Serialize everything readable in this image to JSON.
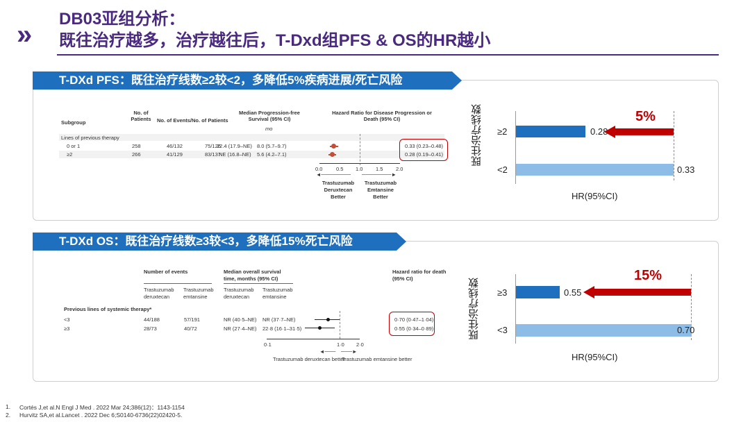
{
  "header": {
    "title_line1": "DB03亚组分析：",
    "title_line2": "既往治疗越多，治疗越往后，T-Dxd组PFS & OS的HR越小",
    "chevron_icon": "double-chevron-right-icon"
  },
  "colors": {
    "brand": "#4a2a80",
    "ribbon": "#1f6fbf",
    "dark_bar": "#1f6fbf",
    "light_bar": "#8dbde6",
    "highlight": "#c00000"
  },
  "pfs": {
    "banner": "T-DXd PFS：既往治疗线数≥2较<2，多降低5%疾病进展/死亡风险",
    "table": {
      "headers": {
        "subgroup": "Subgroup",
        "patients": "No. of Patients",
        "events": "No. of Events/No. of Patients",
        "median": "Median Progression-free Survival (95% CI)",
        "unit": "mo",
        "hr": "Hazard Ratio for Disease Progression or Death (95% CI)"
      },
      "section": "Lines of previous therapy",
      "rows": [
        {
          "label": "0 or 1",
          "patients": "258",
          "ev1": "46/132",
          "ev2": "75/126",
          "m1": "22.4 (17.9–NE)",
          "m2": "8.0 (5.7–9.7)",
          "hr": "0.33 (0.23–0.48)",
          "hr_val": 0.33,
          "lo": 0.23,
          "hi": 0.48
        },
        {
          "label": "≥2",
          "patients": "266",
          "ev1": "41/129",
          "ev2": "83/137",
          "m1": "NE (16.8–NE)",
          "m2": "5.6 (4.2–7.1)",
          "hr": "0.28 (0.19–0.41)",
          "hr_val": 0.28,
          "lo": 0.19,
          "hi": 0.41
        }
      ],
      "ticks": [
        "0.0",
        "0.5",
        "1.0",
        "1.5",
        "2.0"
      ],
      "left_note": "Trastuzumab Deruxtecan Better",
      "right_note": "Trastuzumab Emtansine Better"
    },
    "chart": {
      "ylabel": "既往治疗线数",
      "xlabel": "HR(95%CI)",
      "bars": [
        {
          "label": "≥2",
          "value": 0.28,
          "text": "0.28"
        },
        {
          "label": "<2",
          "value": 0.33,
          "text": "0.33"
        }
      ],
      "reduction": "5%"
    }
  },
  "os": {
    "banner": "T-DXd OS：既往治疗线数≥3较<3，多降低15%死亡风险",
    "table": {
      "headers": {
        "events": "Number of events",
        "median": "Median overall survival time, months (95% CI)",
        "hr": "Hazard ratio for death (95% CI)",
        "arm1": "Trastuzumab deruxtecan",
        "arm2": "Trastuzumab emtansine"
      },
      "section": "Previous lines of systemic therapy*",
      "rows": [
        {
          "label": "<3",
          "ev1": "44/188",
          "ev2": "57/191",
          "m1": "NR (40·5–NE)",
          "m2": "NR (37·7–NE)",
          "hr": "0·70 (0·47–1·04)"
        },
        {
          "label": "≥3",
          "ev1": "28/73",
          "ev2": "40/72",
          "m1": "NR (27·4–NE)",
          "m2": "22·8 (16·1–31·5)",
          "hr": "0·55 (0·34–0·89)"
        }
      ],
      "ticks": [
        "0·1",
        "1·0",
        "2·0"
      ],
      "left_note": "Trastuzumab deruxtecan better",
      "right_note": "Trastuzumab emtansine better"
    },
    "chart": {
      "ylabel": "既往治疗线数",
      "xlabel": "HR(95%CI)",
      "bars": [
        {
          "label": "≥3",
          "value": 0.55,
          "text": "0.55"
        },
        {
          "label": "<3",
          "value": 0.7,
          "text": "0.70"
        }
      ],
      "reduction": "15%"
    }
  },
  "references": [
    "1.",
    "Cortés J,et al.N Engl J Med . 2022 Mar 24;386(12)：1143-1154",
    "2.",
    "Hurvitz SA,et al.Lancet . 2022 Dec 6;S0140-6736(22)02420-5."
  ]
}
